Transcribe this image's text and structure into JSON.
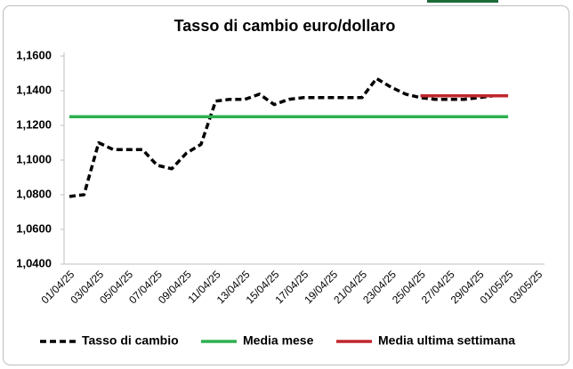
{
  "chart_data": {
    "type": "line",
    "title": "Tasso di cambio euro/dollaro",
    "categories": [
      "01/04/25",
      null,
      "03/04/25",
      null,
      "05/04/25",
      null,
      "07/04/25",
      null,
      "09/04/25",
      null,
      "11/04/25",
      null,
      "13/04/25",
      null,
      "15/04/25",
      null,
      "17/04/25",
      null,
      "19/04/25",
      null,
      "21/04/25",
      null,
      "23/04/25",
      null,
      "25/04/25",
      null,
      "27/04/25",
      null,
      "29/04/25",
      null,
      "01/05/25",
      null,
      "03/05/25"
    ],
    "series": [
      {
        "name": "Tasso di cambio",
        "color": "#000000",
        "dash": true,
        "values": [
          1.079,
          1.08,
          1.11,
          1.106,
          1.106,
          1.106,
          1.097,
          1.095,
          1.104,
          1.109,
          1.134,
          1.135,
          1.135,
          1.138,
          1.132,
          1.135,
          1.136,
          1.136,
          1.136,
          1.136,
          1.136,
          1.147,
          1.142,
          1.138,
          1.136,
          1.135,
          1.135,
          1.135,
          1.136,
          1.137,
          1.137,
          null,
          null
        ]
      },
      {
        "name": "Media mese",
        "color": "#2eb04f",
        "dash": false,
        "values": [
          1.125,
          1.125,
          1.125,
          1.125,
          1.125,
          1.125,
          1.125,
          1.125,
          1.125,
          1.125,
          1.125,
          1.125,
          1.125,
          1.125,
          1.125,
          1.125,
          1.125,
          1.125,
          1.125,
          1.125,
          1.125,
          1.125,
          1.125,
          1.125,
          1.125,
          1.125,
          1.125,
          1.125,
          1.125,
          1.125,
          1.125,
          null,
          null
        ]
      },
      {
        "name": "Media ultima settimana",
        "color": "#c0272d",
        "dash": false,
        "values": [
          null,
          null,
          null,
          null,
          null,
          null,
          null,
          null,
          null,
          null,
          null,
          null,
          null,
          null,
          null,
          null,
          null,
          null,
          null,
          null,
          null,
          null,
          null,
          null,
          1.137,
          1.137,
          1.137,
          1.137,
          1.137,
          1.137,
          1.137,
          null,
          null
        ]
      }
    ],
    "ylim": [
      1.04,
      1.16
    ],
    "yticks": [
      {
        "value": 1.04,
        "label": "1,0400"
      },
      {
        "value": 1.06,
        "label": "1,0600"
      },
      {
        "value": 1.08,
        "label": "1,0800"
      },
      {
        "value": 1.1,
        "label": "1,1000"
      },
      {
        "value": 1.12,
        "label": "1,1200"
      },
      {
        "value": 1.14,
        "label": "1,1400"
      },
      {
        "value": 1.16,
        "label": "1,1600"
      }
    ],
    "legend": "bottom"
  }
}
